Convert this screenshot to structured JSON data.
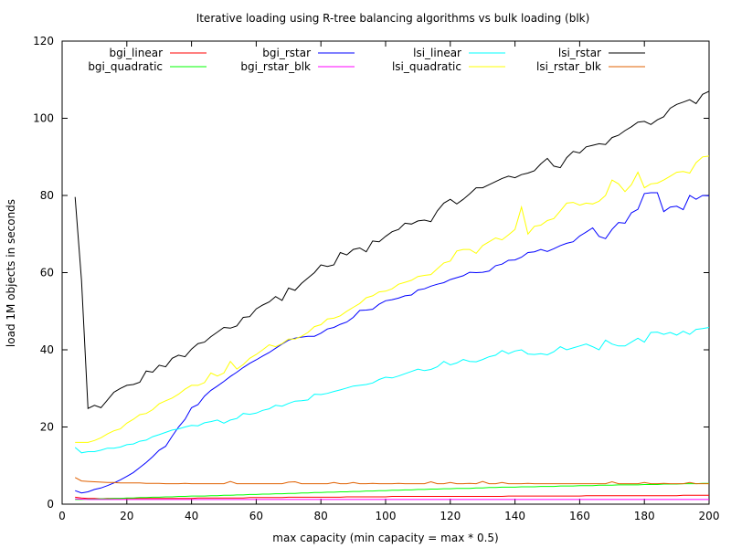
{
  "chart_data": {
    "type": "line",
    "title": "Iterative loading using R-tree balancing algorithms vs bulk loading (blk)",
    "xlabel": "max capacity (min capacity = max * 0.5)",
    "ylabel": "load 1M objects in seconds",
    "xlim": [
      0,
      200
    ],
    "ylim": [
      0,
      120
    ],
    "x_ticks": [
      "0",
      "20",
      "40",
      "60",
      "80",
      "100",
      "120",
      "140",
      "160",
      "180",
      "200"
    ],
    "y_ticks": [
      "0",
      "20",
      "40",
      "60",
      "80",
      "100",
      "120"
    ],
    "grid": false,
    "legend_position": "top",
    "x": [
      4,
      6,
      8,
      10,
      12,
      14,
      16,
      18,
      20,
      22,
      24,
      26,
      28,
      30,
      32,
      34,
      36,
      38,
      40,
      42,
      44,
      46,
      48,
      50,
      52,
      54,
      56,
      58,
      60,
      62,
      64,
      66,
      68,
      70,
      72,
      74,
      76,
      78,
      80,
      82,
      84,
      86,
      88,
      90,
      92,
      94,
      96,
      98,
      100,
      102,
      104,
      106,
      108,
      110,
      112,
      114,
      116,
      118,
      120,
      122,
      124,
      126,
      128,
      130,
      132,
      134,
      136,
      138,
      140,
      142,
      144,
      146,
      148,
      150,
      152,
      154,
      156,
      158,
      160,
      162,
      164,
      166,
      168,
      170,
      172,
      174,
      176,
      178,
      180,
      182,
      184,
      186,
      188,
      190,
      192,
      194,
      196,
      198,
      200
    ],
    "series": [
      {
        "name": "bgi_linear",
        "color": "#ff0000",
        "values": [
          1.8,
          1.6,
          1.5,
          1.5,
          1.4,
          1.5,
          1.5,
          1.5,
          1.5,
          1.5,
          1.5,
          1.5,
          1.5,
          1.5,
          1.5,
          1.5,
          1.5,
          1.5,
          1.5,
          1.6,
          1.6,
          1.6,
          1.6,
          1.6,
          1.6,
          1.6,
          1.6,
          1.7,
          1.7,
          1.7,
          1.7,
          1.7,
          1.7,
          1.8,
          1.8,
          1.8,
          1.8,
          1.8,
          1.8,
          1.8,
          1.8,
          1.8,
          1.9,
          1.9,
          1.9,
          1.9,
          1.9,
          1.9,
          1.9,
          2.0,
          2.0,
          2.0,
          2.0,
          2.0,
          2.0,
          2.0,
          2.0,
          2.0,
          2.0,
          2.0,
          2.0,
          2.0,
          2.0,
          2.0,
          2.0,
          2.0,
          2.0,
          2.1,
          2.1,
          2.1,
          2.1,
          2.1,
          2.1,
          2.1,
          2.1,
          2.1,
          2.1,
          2.1,
          2.1,
          2.2,
          2.2,
          2.2,
          2.2,
          2.2,
          2.2,
          2.2,
          2.2,
          2.2,
          2.2,
          2.2,
          2.2,
          2.2,
          2.2,
          2.2,
          2.3,
          2.3,
          2.3,
          2.3,
          2.3
        ]
      },
      {
        "name": "bgi_quadratic",
        "color": "#00ff00",
        "values": [
          1.2,
          1.2,
          1.3,
          1.3,
          1.4,
          1.4,
          1.5,
          1.5,
          1.6,
          1.6,
          1.7,
          1.7,
          1.8,
          1.8,
          1.9,
          1.9,
          2.0,
          2.0,
          2.1,
          2.1,
          2.1,
          2.2,
          2.2,
          2.3,
          2.3,
          2.4,
          2.4,
          2.5,
          2.5,
          2.6,
          2.6,
          2.7,
          2.7,
          2.8,
          2.8,
          2.9,
          2.9,
          3.0,
          3.0,
          3.1,
          3.1,
          3.2,
          3.2,
          3.3,
          3.3,
          3.4,
          3.4,
          3.5,
          3.5,
          3.6,
          3.6,
          3.7,
          3.7,
          3.8,
          3.8,
          3.9,
          3.9,
          4.0,
          4.0,
          4.1,
          4.1,
          4.1,
          4.2,
          4.2,
          4.3,
          4.3,
          4.4,
          4.4,
          4.4,
          4.5,
          4.5,
          4.5,
          4.6,
          4.6,
          4.6,
          4.7,
          4.7,
          4.7,
          4.8,
          4.8,
          4.8,
          4.9,
          4.9,
          4.9,
          5.0,
          5.0,
          5.0,
          5.0,
          5.1,
          5.1,
          5.1,
          5.2,
          5.2,
          5.2,
          5.3,
          5.3,
          5.3,
          5.4,
          5.4
        ]
      },
      {
        "name": "bgi_rstar",
        "color": "#0000ff",
        "values": [
          3.5,
          2.9,
          3.2,
          3.8,
          4.2,
          4.8,
          5.5,
          6.3,
          7.2,
          8.2,
          9.5,
          10.8,
          12.3,
          14.0,
          15.0,
          17.6,
          20.0,
          22.0,
          25.0,
          25.8,
          28.0,
          29.5,
          30.6,
          31.8,
          33.1,
          34.2,
          35.4,
          36.5,
          37.4,
          38.4,
          39.3,
          40.4,
          41.5,
          42.5,
          43.0,
          43.3,
          43.5,
          43.5,
          44.3,
          45.4,
          45.8,
          46.6,
          47.2,
          48.4,
          50.2,
          50.3,
          50.5,
          51.8,
          52.7,
          53.0,
          53.4,
          54.0,
          54.2,
          55.5,
          55.8,
          56.5,
          57.0,
          57.4,
          58.2,
          58.7,
          59.2,
          60.1,
          60.0,
          60.1,
          60.4,
          61.8,
          62.2,
          63.2,
          63.3,
          64.0,
          65.2,
          65.4,
          66.0,
          65.5,
          66.2,
          67.0,
          67.6,
          68.0,
          69.5,
          70.5,
          71.6,
          69.4,
          68.8,
          71.2,
          73.0,
          72.8,
          75.5,
          76.4,
          80.5,
          80.7,
          80.7,
          75.8,
          77.0,
          77.2,
          76.3,
          80.0,
          79.0,
          80.0,
          79.9
        ]
      },
      {
        "name": "bgi_rstar_blk",
        "color": "#ff00ff",
        "values": [
          1.4,
          1.3,
          1.2,
          1.2,
          1.2,
          1.2,
          1.2,
          1.2,
          1.2,
          1.2,
          1.2,
          1.2,
          1.2,
          1.2,
          1.2,
          1.2,
          1.2,
          1.2,
          1.2,
          1.2,
          1.2,
          1.2,
          1.2,
          1.2,
          1.2,
          1.2,
          1.2,
          1.2,
          1.2,
          1.2,
          1.2,
          1.2,
          1.2,
          1.2,
          1.2,
          1.2,
          1.2,
          1.2,
          1.2,
          1.2,
          1.2,
          1.2,
          1.2,
          1.2,
          1.2,
          1.2,
          1.2,
          1.2,
          1.2,
          1.2,
          1.2,
          1.2,
          1.2,
          1.2,
          1.2,
          1.2,
          1.2,
          1.2,
          1.2,
          1.2,
          1.2,
          1.2,
          1.2,
          1.2,
          1.2,
          1.2,
          1.2,
          1.2,
          1.2,
          1.2,
          1.2,
          1.2,
          1.2,
          1.2,
          1.2,
          1.2,
          1.2,
          1.2,
          1.2,
          1.2,
          1.2,
          1.2,
          1.2,
          1.2,
          1.2,
          1.2,
          1.2,
          1.2,
          1.2,
          1.2,
          1.2,
          1.2,
          1.2,
          1.2,
          1.2,
          1.2,
          1.2,
          1.2,
          1.2
        ]
      },
      {
        "name": "lsi_linear",
        "color": "#00ffff",
        "values": [
          14.7,
          13.3,
          13.6,
          13.6,
          14.0,
          14.5,
          14.5,
          14.8,
          15.4,
          15.6,
          16.3,
          16.6,
          17.5,
          18.0,
          18.6,
          19.2,
          19.5,
          20.0,
          20.4,
          20.3,
          21.1,
          21.4,
          21.8,
          21.0,
          21.8,
          22.2,
          23.5,
          23.3,
          23.6,
          24.3,
          24.7,
          25.6,
          25.4,
          26.1,
          26.7,
          26.8,
          27.0,
          28.5,
          28.4,
          28.7,
          29.2,
          29.6,
          30.1,
          30.6,
          30.8,
          31.0,
          31.4,
          32.3,
          32.9,
          32.7,
          33.2,
          33.8,
          34.4,
          35.0,
          34.6,
          34.9,
          35.6,
          37.0,
          36.1,
          36.6,
          37.5,
          37.0,
          36.9,
          37.5,
          38.2,
          38.6,
          39.8,
          39.0,
          39.7,
          40.0,
          38.9,
          38.8,
          39.0,
          38.7,
          39.5,
          40.8,
          40.0,
          40.5,
          41.0,
          41.5,
          40.8,
          40.0,
          42.5,
          41.5,
          41.0,
          41.0,
          42.0,
          43.0,
          42.0,
          44.5,
          44.6,
          44.0,
          44.5,
          43.8,
          44.8,
          44.0,
          45.3,
          45.5,
          45.8
        ]
      },
      {
        "name": "lsi_quadratic",
        "color": "#ffff00",
        "values": [
          16.0,
          16.0,
          16.0,
          16.5,
          17.2,
          18.2,
          19.0,
          19.5,
          21.0,
          22.0,
          23.2,
          23.5,
          24.5,
          26.0,
          26.8,
          27.5,
          28.5,
          29.8,
          30.8,
          30.8,
          31.5,
          34.0,
          33.2,
          34.0,
          37.0,
          35.0,
          36.2,
          37.8,
          38.8,
          40.0,
          41.3,
          40.8,
          41.6,
          42.8,
          42.8,
          43.5,
          44.5,
          46.0,
          46.5,
          48.0,
          48.2,
          48.8,
          50.0,
          51.0,
          52.0,
          53.5,
          54.0,
          55.0,
          55.2,
          55.8,
          57.0,
          57.5,
          58.0,
          59.0,
          59.3,
          59.5,
          61.0,
          62.5,
          63.0,
          65.6,
          66.0,
          66.0,
          65.0,
          67.0,
          68.0,
          69.0,
          68.5,
          69.8,
          71.2,
          77.0,
          70.0,
          72.0,
          72.3,
          73.5,
          74.0,
          76.0,
          78.0,
          78.2,
          77.5,
          78.0,
          77.8,
          78.5,
          80.0,
          84.0,
          83.0,
          81.0,
          82.8,
          86.0,
          82.0,
          83.0,
          83.2,
          84.0,
          85.0,
          86.0,
          86.2,
          85.8,
          88.5,
          90.0,
          90.2
        ]
      },
      {
        "name": "lsi_rstar",
        "color": "#000000",
        "values": [
          79.6,
          58.0,
          24.8,
          25.6,
          25.0,
          27.0,
          29.0,
          30.0,
          30.8,
          31.0,
          31.6,
          34.5,
          34.2,
          36.0,
          35.6,
          37.8,
          38.6,
          38.2,
          40.2,
          41.6,
          42.0,
          43.4,
          44.6,
          45.8,
          45.6,
          46.2,
          48.4,
          48.6,
          50.6,
          51.6,
          52.4,
          53.8,
          52.8,
          56.0,
          55.4,
          57.2,
          58.6,
          60.0,
          62.0,
          61.6,
          62.0,
          65.2,
          64.6,
          66.0,
          66.4,
          65.4,
          68.2,
          68.0,
          69.4,
          70.6,
          71.2,
          72.8,
          72.6,
          73.4,
          73.6,
          73.2,
          76.0,
          78.0,
          79.0,
          77.8,
          79.0,
          80.4,
          82.0,
          82.0,
          82.8,
          83.6,
          84.4,
          85.0,
          84.6,
          85.4,
          85.8,
          86.4,
          88.2,
          89.6,
          87.6,
          87.2,
          89.8,
          91.4,
          91.0,
          92.6,
          93.0,
          93.4,
          93.2,
          95.0,
          95.6,
          96.8,
          97.8,
          99.0,
          99.2,
          98.4,
          99.6,
          100.4,
          102.6,
          103.6,
          104.2,
          104.8,
          103.8,
          106.2,
          107.0
        ]
      },
      {
        "name": "lsi_rstar_blk",
        "color": "#e06000",
        "values": [
          6.9,
          6.0,
          5.9,
          5.8,
          5.7,
          5.6,
          5.6,
          5.5,
          5.5,
          5.5,
          5.5,
          5.4,
          5.4,
          5.4,
          5.3,
          5.3,
          5.3,
          5.4,
          5.3,
          5.3,
          5.3,
          5.3,
          5.3,
          5.3,
          5.9,
          5.3,
          5.3,
          5.3,
          5.3,
          5.3,
          5.3,
          5.3,
          5.3,
          5.7,
          5.8,
          5.3,
          5.3,
          5.3,
          5.3,
          5.3,
          5.6,
          5.3,
          5.3,
          5.6,
          5.3,
          5.3,
          5.4,
          5.3,
          5.3,
          5.3,
          5.4,
          5.3,
          5.3,
          5.3,
          5.3,
          5.8,
          5.3,
          5.3,
          5.6,
          5.3,
          5.3,
          5.4,
          5.3,
          5.9,
          5.3,
          5.3,
          5.6,
          5.3,
          5.3,
          5.3,
          5.4,
          5.3,
          5.3,
          5.3,
          5.3,
          5.3,
          5.3,
          5.3,
          5.3,
          5.3,
          5.3,
          5.3,
          5.3,
          5.8,
          5.3,
          5.3,
          5.3,
          5.3,
          5.6,
          5.3,
          5.3,
          5.4,
          5.3,
          5.3,
          5.3,
          5.6,
          5.3,
          5.3,
          5.3
        ]
      }
    ]
  }
}
